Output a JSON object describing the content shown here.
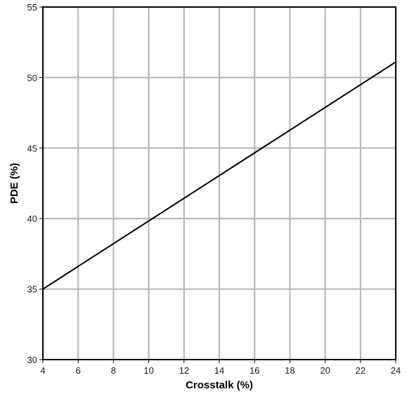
{
  "chart_data": {
    "type": "line",
    "title": "",
    "xlabel": "Crosstalk (%)",
    "ylabel": "PDE (%)",
    "xlim": [
      4,
      24
    ],
    "ylim": [
      30,
      55
    ],
    "x_ticks": [
      4,
      6,
      8,
      10,
      12,
      14,
      16,
      18,
      20,
      22,
      24
    ],
    "y_ticks": [
      30,
      35,
      40,
      45,
      50,
      55
    ],
    "grid": true,
    "legend": "none",
    "series": [
      {
        "x": [
          4,
          24
        ],
        "y": [
          35.0,
          51.1
        ]
      }
    ],
    "colors": {
      "line": "#000000",
      "grid": "#b3b3b3",
      "frame": "#000000"
    }
  }
}
